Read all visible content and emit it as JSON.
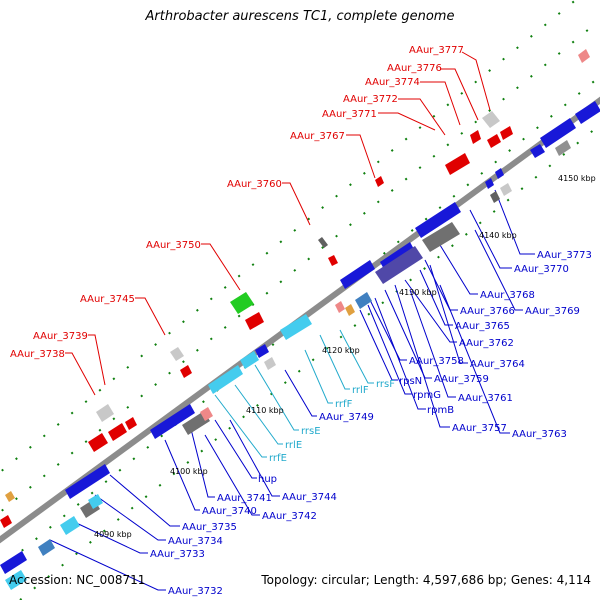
{
  "title": "Arthrobacter aurescens TC1, complete genome",
  "footer": {
    "accession": "Accession: NC_008711",
    "stats": "Topology: circular; Length: 4,597,686 bp; Genes: 4,114"
  },
  "colors": {
    "backbone": "#8c8c8c",
    "forward_label": "#e00000",
    "reverse_label": "#0000cc",
    "rna_label": "#22aacc",
    "gene_blue": "#1818d8",
    "gene_red": "#e00000",
    "gene_green": "#22cc22",
    "gene_grey": "#909090",
    "gene_cyan": "#44ccee",
    "gene_purple": "#5048a8",
    "tick": "#108010"
  },
  "ticks": [
    "4090 kbp",
    "4100 kbp",
    "4110 kbp",
    "4120 kbp",
    "4130 kbp",
    "4140 kbp",
    "4150 kbp"
  ],
  "labels_top": [
    "AAur_3777",
    "AAur_3776",
    "AAur_3774",
    "AAur_3772",
    "AAur_3771",
    "AAur_3767",
    "AAur_3760",
    "AAur_3750",
    "AAur_3745",
    "AAur_3739",
    "AAur_3738"
  ],
  "labels_bottom": [
    "AAur_3773",
    "AAur_3770",
    "AAur_3768",
    "AAur_3769",
    "AAur_3766",
    "AAur_3765",
    "AAur_3762",
    "AAur_3764",
    "AAur_3758",
    "AAur_3759",
    "AAur_3761",
    "rpsN",
    "rpmG",
    "rpmB",
    "AAur_3757",
    "AAur_3763",
    "AAur_3749",
    "hup",
    "AAur_3741",
    "AAur_3744",
    "AAur_3740",
    "AAur_3742",
    "AAur_3735",
    "AAur_3734",
    "AAur_3733",
    "AAur_3732"
  ],
  "labels_rna": [
    "rrsF",
    "rrlF",
    "rrfF",
    "rrsE",
    "rrlE",
    "rrfE"
  ]
}
